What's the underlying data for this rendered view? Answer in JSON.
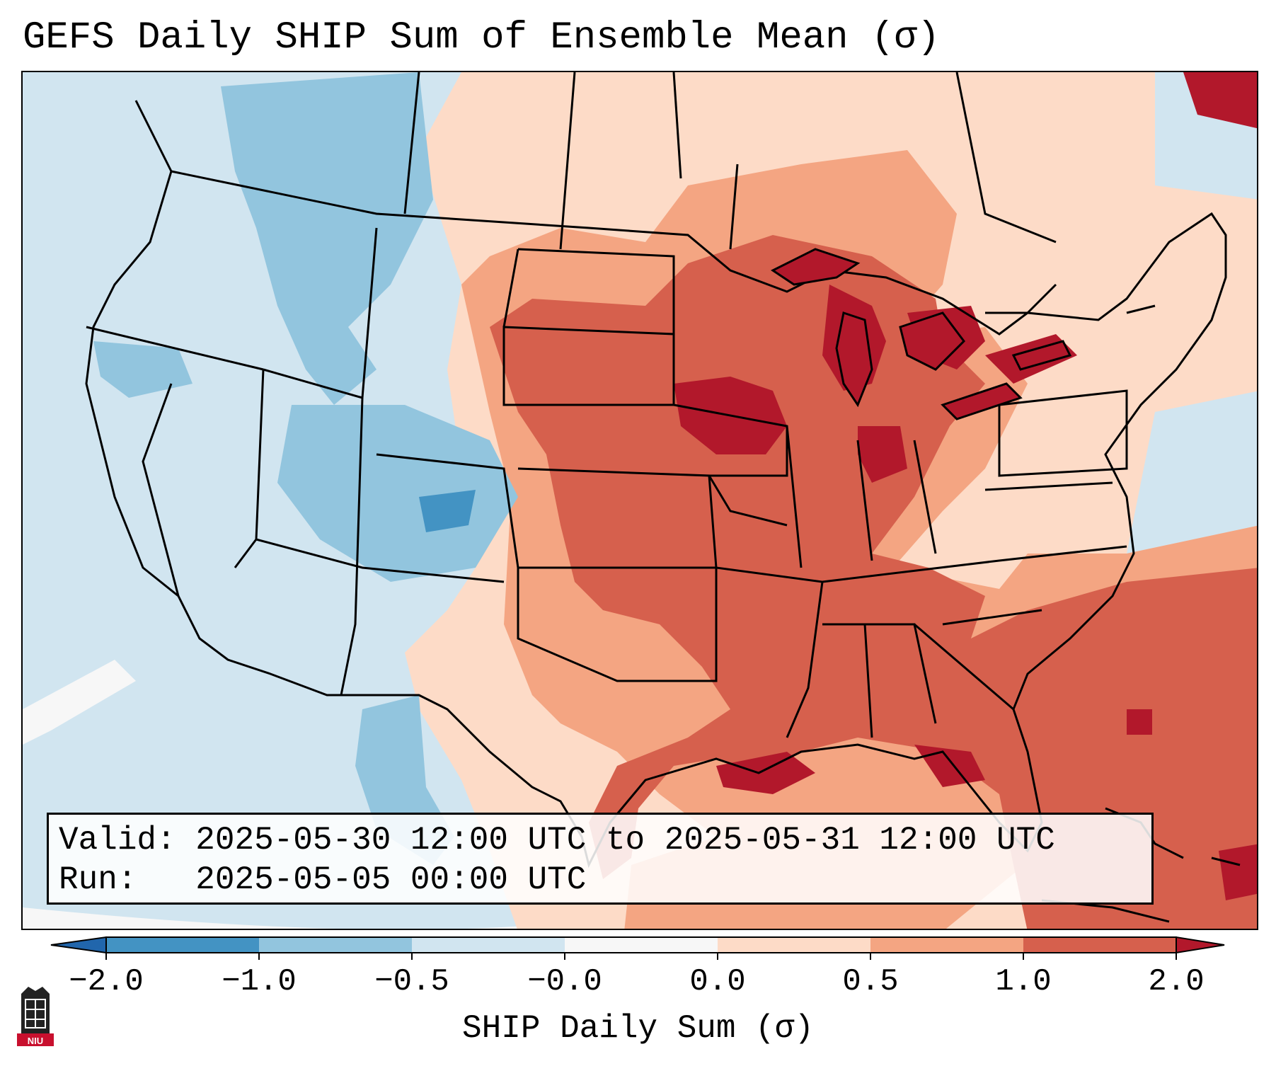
{
  "title": "GEFS Daily SHIP Sum of Ensemble Mean (σ)",
  "map": {
    "field": "SHIP daily sum anomaly",
    "region": "Continental United States",
    "regions": [
      {
        "name": "west-coast",
        "category": "-0.5 to 0"
      },
      {
        "name": "northern-rockies",
        "category": "-1.0 to -0.5"
      },
      {
        "name": "colorado-utah",
        "category": "-1.0 to -0.5"
      },
      {
        "name": "northern-plains",
        "category": "0.5 to 1.0"
      },
      {
        "name": "central-plains",
        "category": "1.0 to 2.0"
      },
      {
        "name": "upper-midwest",
        "category": "1.0 to 2.0"
      },
      {
        "name": "great-lakes",
        "category": "above 2.0"
      },
      {
        "name": "ohio-valley",
        "category": "1.0 to 2.0"
      },
      {
        "name": "southeast",
        "category": "1.0 to 2.0"
      },
      {
        "name": "texas",
        "category": "0 to 0.5"
      },
      {
        "name": "gulf-of-mexico",
        "category": "1.0 to 2.0"
      },
      {
        "name": "western-atlantic",
        "category": "1.0 to 2.0"
      },
      {
        "name": "northeast",
        "category": "-0.5 to 0"
      },
      {
        "name": "southwest",
        "category": "-0.5 to 0"
      }
    ]
  },
  "info": {
    "valid_label": "Valid:",
    "valid_value": "2025-05-30 12:00 UTC to 2025-05-31 12:00 UTC",
    "run_label": "Run:",
    "run_value": "2025-05-05 00:00 UTC"
  },
  "colorbar": {
    "label": "SHIP Daily Sum (σ)",
    "ticks": [
      "−2.0",
      "−1.0",
      "−0.5",
      "−0.0",
      "0.0",
      "0.5",
      "1.0",
      "2.0"
    ],
    "colors": [
      "#2166ac",
      "#4393c3",
      "#92c5de",
      "#d1e5f0",
      "#f7f7f7",
      "#fddbc7",
      "#f4a582",
      "#d6604d",
      "#b2182b"
    ]
  },
  "logo": {
    "text": "NIU"
  }
}
